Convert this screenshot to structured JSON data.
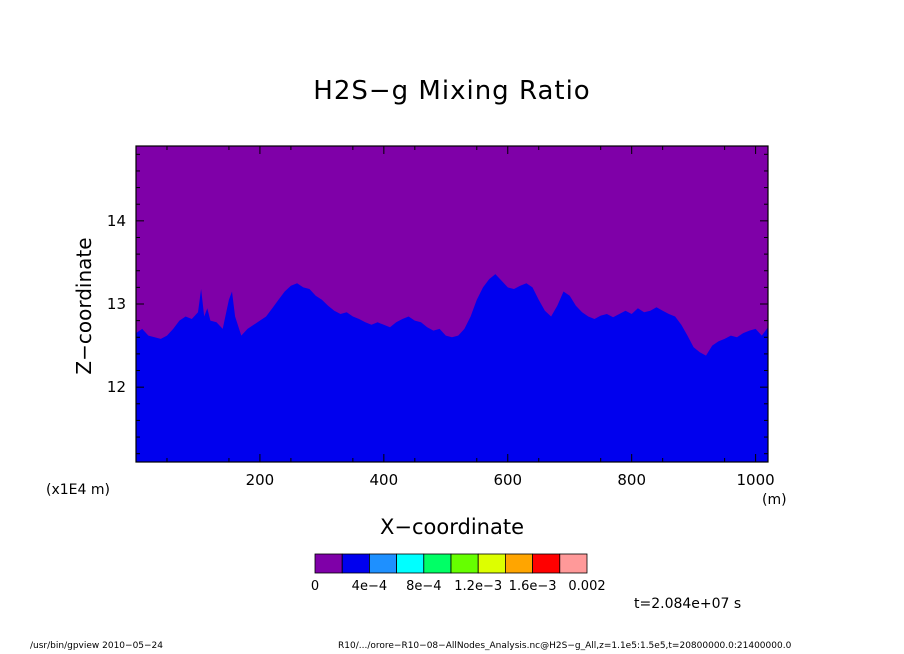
{
  "chart_data": {
    "type": "heatmap",
    "title": "H2S−g Mixing Ratio",
    "xlabel": "X−coordinate",
    "ylabel": "Z−coordinate",
    "x_units": "(m)",
    "y_scale_note": "(x1E4 m)",
    "xlim": [
      0,
      1020
    ],
    "ylim": [
      11.1,
      14.9
    ],
    "x_ticks": [
      200,
      400,
      600,
      800,
      1000
    ],
    "y_ticks": [
      12,
      13,
      14
    ],
    "x_tick_labels": [
      "200",
      "400",
      "600",
      "800",
      "1000"
    ],
    "y_tick_labels": [
      "12",
      "13",
      "14"
    ],
    "fill_below_interface": "#0000ee",
    "fill_above_interface": "#7f00a8",
    "interface": {
      "x": [
        0,
        10,
        20,
        30,
        40,
        50,
        60,
        70,
        80,
        90,
        100,
        105,
        110,
        115,
        120,
        130,
        140,
        150,
        155,
        160,
        170,
        180,
        190,
        200,
        210,
        220,
        230,
        240,
        250,
        260,
        270,
        280,
        290,
        300,
        310,
        320,
        330,
        340,
        350,
        360,
        370,
        380,
        390,
        400,
        410,
        420,
        430,
        440,
        450,
        460,
        470,
        480,
        490,
        500,
        510,
        520,
        530,
        540,
        550,
        560,
        570,
        580,
        590,
        600,
        610,
        620,
        630,
        640,
        650,
        660,
        670,
        680,
        690,
        700,
        710,
        720,
        730,
        740,
        750,
        760,
        770,
        780,
        790,
        800,
        810,
        820,
        830,
        840,
        850,
        860,
        870,
        880,
        890,
        900,
        910,
        920,
        930,
        940,
        950,
        960,
        970,
        980,
        990,
        1000,
        1010,
        1020
      ],
      "z": [
        12.65,
        12.7,
        12.62,
        12.6,
        12.58,
        12.62,
        12.7,
        12.8,
        12.85,
        12.82,
        12.9,
        13.18,
        12.85,
        12.95,
        12.8,
        12.78,
        12.7,
        13.05,
        13.15,
        12.85,
        12.62,
        12.7,
        12.75,
        12.8,
        12.85,
        12.95,
        13.05,
        13.15,
        13.22,
        13.25,
        13.2,
        13.18,
        13.1,
        13.05,
        12.98,
        12.92,
        12.88,
        12.9,
        12.85,
        12.82,
        12.78,
        12.75,
        12.78,
        12.75,
        12.72,
        12.78,
        12.82,
        12.85,
        12.8,
        12.78,
        12.72,
        12.68,
        12.7,
        12.62,
        12.6,
        12.62,
        12.7,
        12.85,
        13.05,
        13.2,
        13.3,
        13.36,
        13.28,
        13.2,
        13.18,
        13.22,
        13.25,
        13.2,
        13.05,
        12.92,
        12.85,
        12.98,
        13.15,
        13.1,
        12.98,
        12.9,
        12.85,
        12.82,
        12.86,
        12.88,
        12.84,
        12.88,
        12.92,
        12.88,
        12.95,
        12.9,
        12.92,
        12.96,
        12.92,
        12.88,
        12.85,
        12.75,
        12.62,
        12.48,
        12.42,
        12.38,
        12.5,
        12.55,
        12.58,
        12.62,
        12.6,
        12.65,
        12.68,
        12.7,
        12.62,
        12.72
      ]
    },
    "colorbar": {
      "colors": [
        "#7f00a8",
        "#0000ee",
        "#1e90ff",
        "#00ffff",
        "#00ff66",
        "#66ff00",
        "#ddff00",
        "#ffa500",
        "#ff0000",
        "#ff9999"
      ],
      "labels": [
        "0",
        "4e−4",
        "8e−4",
        "1.2e−3",
        "1.6e−3",
        "0.002"
      ]
    }
  },
  "time_label": "t=2.084e+07 s",
  "footer": {
    "left": "/usr/bin/gpview   2010−05−24",
    "right": "R10/.../orore−R10−08−AllNodes_Analysis.nc@H2S−g_All,z=1.1e5:1.5e5,t=20800000.0:21400000.0"
  }
}
